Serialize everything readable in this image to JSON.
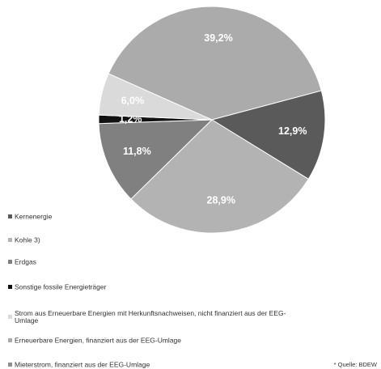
{
  "chart_data": {
    "type": "pie",
    "categories": [
      "Erneuerbare Energien, finanziert aus der EEG-Umlage",
      "Kernenergie",
      "Kohle 3)",
      "Erdgas",
      "Sonstige fossile Energieträger",
      "Strom aus Erneuerbare Energien mit Herkunftsnachweisen, nicht finanziert aus der EEG-Umlage",
      "Mieterstrom, finanziert aus der EEG-Umlage"
    ],
    "values": [
      39.2,
      12.9,
      28.9,
      11.8,
      1.2,
      6.0,
      0
    ],
    "value_labels": [
      "39,2%",
      "12,9%",
      "28,9%",
      "11,8%",
      "1,2%",
      "6,0%",
      null
    ],
    "colors": [
      "#ababab",
      "#5a5a5a",
      "#b3b3b3",
      "#808080",
      "#111111",
      "#dadada",
      "#8e8e8e"
    ],
    "legend_order": [
      1,
      2,
      3,
      4,
      5,
      0,
      6
    ],
    "source": "* Quelle: BDEW"
  }
}
